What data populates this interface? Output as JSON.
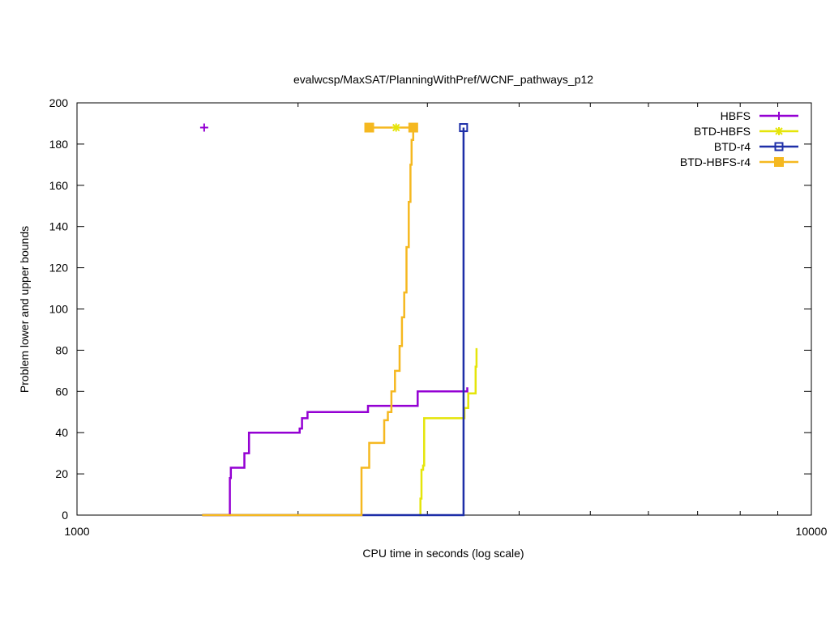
{
  "chart_data": {
    "type": "line",
    "title": "evalwcsp/MaxSAT/PlanningWithPref/WCNF_pathways_p12",
    "xlabel": "CPU time in seconds (log scale)",
    "ylabel": "Problem lower and upper bounds",
    "xscale": "log",
    "xlim": [
      1000,
      10000
    ],
    "ylim": [
      0,
      200
    ],
    "xticks": [
      1000,
      10000
    ],
    "xtick_labels": [
      "1000",
      "10000"
    ],
    "yticks": [
      0,
      20,
      40,
      60,
      80,
      100,
      120,
      140,
      160,
      180,
      200
    ],
    "ytick_labels": [
      "0",
      "20",
      "40",
      "60",
      "80",
      "100",
      "120",
      "140",
      "160",
      "180",
      "200"
    ],
    "grid": false,
    "legend_position": "top-right",
    "series": [
      {
        "name": "HBFS",
        "color": "#9400d3",
        "marker": "plus",
        "step": [
          [
            1484,
            0
          ],
          [
            1615,
            0
          ],
          [
            1615,
            18
          ],
          [
            1620,
            18
          ],
          [
            1620,
            23
          ],
          [
            1690,
            23
          ],
          [
            1690,
            30
          ],
          [
            1715,
            30
          ],
          [
            1715,
            40
          ],
          [
            2010,
            40
          ],
          [
            2010,
            42
          ],
          [
            2025,
            42
          ],
          [
            2025,
            47
          ],
          [
            2060,
            47
          ],
          [
            2060,
            50
          ],
          [
            2490,
            50
          ],
          [
            2490,
            53
          ],
          [
            2910,
            53
          ],
          [
            2910,
            60
          ],
          [
            3400,
            60
          ],
          [
            3400,
            62
          ]
        ],
        "upper": [
          [
            1490,
            188
          ]
        ]
      },
      {
        "name": "BTD-HBFS",
        "color": "#e5e50a",
        "marker": "star",
        "step": [
          [
            2920,
            0
          ],
          [
            2935,
            0
          ],
          [
            2935,
            8
          ],
          [
            2945,
            8
          ],
          [
            2945,
            22
          ],
          [
            2960,
            22
          ],
          [
            2960,
            24
          ],
          [
            2970,
            24
          ],
          [
            2970,
            47
          ],
          [
            3370,
            47
          ],
          [
            3370,
            52
          ],
          [
            3410,
            52
          ],
          [
            3410,
            59
          ],
          [
            3490,
            59
          ],
          [
            3490,
            72
          ],
          [
            3500,
            72
          ],
          [
            3500,
            81
          ]
        ],
        "upper": [
          [
            2720,
            188
          ]
        ]
      },
      {
        "name": "BTD-r4",
        "color": "#1e2fa8",
        "marker": "box",
        "step": [
          [
            1480,
            0
          ],
          [
            3360,
            0
          ],
          [
            3360,
            188
          ]
        ],
        "upper": [
          [
            3360,
            188
          ]
        ]
      },
      {
        "name": "BTD-HBFS-r4",
        "color": "#f5b820",
        "marker": "filled-box",
        "step": [
          [
            1480,
            0
          ],
          [
            2440,
            0
          ],
          [
            2440,
            23
          ],
          [
            2500,
            23
          ],
          [
            2500,
            35
          ],
          [
            2620,
            35
          ],
          [
            2620,
            46
          ],
          [
            2650,
            46
          ],
          [
            2650,
            50
          ],
          [
            2680,
            50
          ],
          [
            2680,
            60
          ],
          [
            2710,
            60
          ],
          [
            2710,
            70
          ],
          [
            2750,
            70
          ],
          [
            2750,
            82
          ],
          [
            2770,
            82
          ],
          [
            2770,
            96
          ],
          [
            2790,
            96
          ],
          [
            2790,
            108
          ],
          [
            2810,
            108
          ],
          [
            2810,
            130
          ],
          [
            2830,
            130
          ],
          [
            2830,
            152
          ],
          [
            2845,
            152
          ],
          [
            2845,
            170
          ],
          [
            2855,
            170
          ],
          [
            2855,
            182
          ],
          [
            2870,
            182
          ],
          [
            2870,
            188
          ]
        ],
        "upper": [
          [
            2500,
            188
          ],
          [
            2870,
            188
          ]
        ]
      }
    ]
  }
}
